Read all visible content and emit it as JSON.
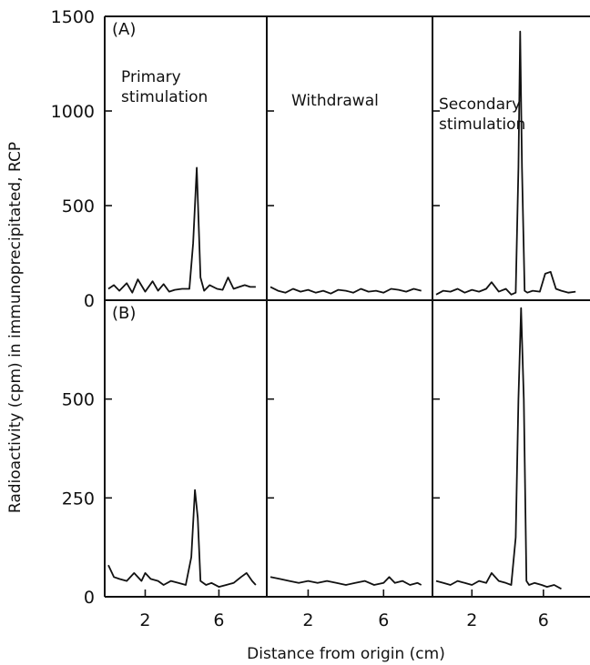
{
  "chart_data": {
    "type": "line",
    "xlabel": "Distance from origin (cm)",
    "ylabel": "Radioactivity (cpm) in immunoprecipitated, RCP",
    "phases": [
      {
        "annotation": [
          "Primary",
          "stimulation"
        ],
        "xticks": [
          "2",
          "6"
        ]
      },
      {
        "annotation": [
          "Withdrawal"
        ],
        "xticks": [
          "2",
          "6"
        ]
      },
      {
        "annotation": [
          "Secondary",
          "stimulation"
        ],
        "xticks": [
          "2",
          "6"
        ]
      }
    ],
    "panels": [
      {
        "tag": "(A)",
        "ylim": [
          0,
          1500
        ],
        "yticks": [
          "0",
          "500",
          "1000",
          "1500"
        ],
        "series": [
          {
            "x": [
              0,
              0.3,
              0.6,
              1,
              1.3,
              1.6,
              2,
              2.4,
              2.7,
              3,
              3.3,
              3.6,
              4,
              4.4,
              4.6,
              4.8,
              5,
              5.2,
              5.5,
              5.9,
              6.2,
              6.5,
              6.8,
              7.1,
              7.4,
              7.7,
              8
            ],
            "y": [
              60,
              80,
              50,
              90,
              40,
              110,
              45,
              100,
              50,
              85,
              45,
              55,
              60,
              60,
              300,
              700,
              120,
              50,
              80,
              60,
              55,
              120,
              60,
              70,
              80,
              70,
              70
            ]
          },
          {
            "x": [
              0,
              0.4,
              0.8,
              1.2,
              1.6,
              2,
              2.4,
              2.8,
              3.2,
              3.6,
              4,
              4.4,
              4.8,
              5.2,
              5.6,
              6,
              6.4,
              6.8,
              7.2,
              7.6,
              8
            ],
            "y": [
              70,
              50,
              40,
              60,
              45,
              55,
              40,
              50,
              35,
              55,
              50,
              40,
              60,
              45,
              50,
              40,
              60,
              55,
              45,
              60,
              50
            ]
          },
          {
            "x": [
              0,
              0.4,
              0.8,
              1.2,
              1.6,
              2,
              2.4,
              2.8,
              3.1,
              3.5,
              3.9,
              4.2,
              4.45,
              4.6,
              4.7,
              4.8,
              4.95,
              5.1,
              5.4,
              5.8,
              6.1,
              6.4,
              6.7,
              7,
              7.4,
              7.8
            ],
            "y": [
              30,
              50,
              45,
              60,
              40,
              55,
              45,
              60,
              95,
              45,
              60,
              30,
              40,
              700,
              1420,
              700,
              50,
              40,
              50,
              45,
              140,
              150,
              60,
              50,
              40,
              45
            ]
          }
        ]
      },
      {
        "tag": "(B)",
        "ylim": [
          0,
          750
        ],
        "yticks": [
          "0",
          "250",
          "500"
        ],
        "series": [
          {
            "x": [
              0,
              0.3,
              0.6,
              1,
              1.4,
              1.8,
              2,
              2.3,
              2.7,
              3,
              3.4,
              3.8,
              4.2,
              4.5,
              4.7,
              4.85,
              5,
              5.3,
              5.6,
              6,
              6.4,
              6.8,
              7.2,
              7.5,
              7.8,
              8
            ],
            "y": [
              80,
              50,
              45,
              40,
              60,
              40,
              60,
              45,
              40,
              30,
              40,
              35,
              30,
              100,
              270,
              200,
              40,
              30,
              35,
              25,
              30,
              35,
              50,
              60,
              40,
              30
            ]
          },
          {
            "x": [
              0,
              0.5,
              1,
              1.5,
              2,
              2.5,
              3,
              3.5,
              4,
              4.5,
              5,
              5.5,
              6,
              6.3,
              6.6,
              7,
              7.4,
              7.8,
              8
            ],
            "y": [
              50,
              45,
              40,
              35,
              40,
              35,
              40,
              35,
              30,
              35,
              40,
              30,
              35,
              50,
              35,
              40,
              30,
              35,
              30
            ]
          },
          {
            "x": [
              0,
              0.4,
              0.8,
              1.2,
              1.6,
              2,
              2.4,
              2.8,
              3.1,
              3.5,
              3.9,
              4.2,
              4.45,
              4.6,
              4.75,
              4.9,
              5.05,
              5.2,
              5.5,
              5.9,
              6.2,
              6.6,
              7
            ],
            "y": [
              40,
              35,
              30,
              40,
              35,
              30,
              40,
              35,
              60,
              40,
              35,
              30,
              150,
              500,
              730,
              500,
              40,
              30,
              35,
              30,
              25,
              30,
              20
            ]
          }
        ]
      }
    ]
  }
}
